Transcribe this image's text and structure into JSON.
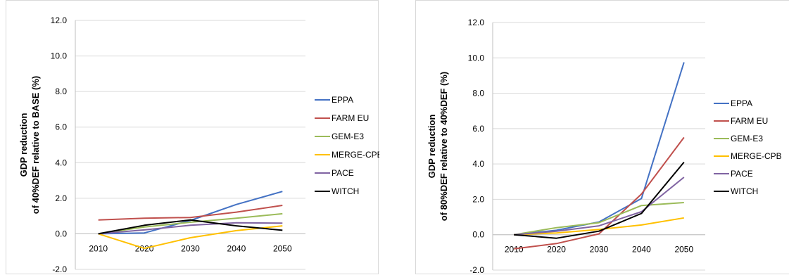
{
  "chart_data": [
    {
      "type": "line",
      "ylabel": [
        "GDP reduction",
        "of 40%DEF relative to BASE (%)"
      ],
      "x": [
        "2010",
        "2020",
        "2030",
        "2040",
        "2050"
      ],
      "ylim": [
        -2.0,
        12.0
      ],
      "yticks": [
        "-2.0",
        "0.0",
        "2.0",
        "4.0",
        "6.0",
        "8.0",
        "10.0",
        "12.0"
      ],
      "grid": true,
      "legend": "right",
      "series": [
        {
          "name": "EPPA",
          "color": "#4472c4",
          "values": [
            0.0,
            0.05,
            0.75,
            1.65,
            2.38
          ]
        },
        {
          "name": "FARM EU",
          "color": "#c0504d",
          "values": [
            0.78,
            0.88,
            0.92,
            1.22,
            1.6
          ]
        },
        {
          "name": "GEM-E3",
          "color": "#9bbb59",
          "values": [
            0.0,
            0.38,
            0.65,
            0.88,
            1.13
          ]
        },
        {
          "name": "MERGE-CPB",
          "color": "#ffc000",
          "values": [
            0.0,
            -0.82,
            -0.22,
            0.18,
            0.45
          ]
        },
        {
          "name": "PACE",
          "color": "#8064a2",
          "values": [
            0.0,
            0.22,
            0.48,
            0.62,
            0.6
          ]
        },
        {
          "name": "WITCH",
          "color": "#000000",
          "values": [
            0.0,
            0.48,
            0.78,
            0.45,
            0.2
          ]
        }
      ]
    },
    {
      "type": "line",
      "ylabel": [
        "GDP reduction",
        "of 80%DEF relative to 40%DEF (%)"
      ],
      "x": [
        "2010",
        "2020",
        "2030",
        "2040",
        "2050"
      ],
      "ylim": [
        -2.0,
        12.0
      ],
      "yticks": [
        "-2.0",
        "0.0",
        "2.0",
        "4.0",
        "6.0",
        "8.0",
        "10.0",
        "12.0"
      ],
      "grid": true,
      "legend": "right",
      "series": [
        {
          "name": "EPPA",
          "color": "#4472c4",
          "values": [
            0.0,
            0.25,
            0.72,
            2.05,
            9.75
          ]
        },
        {
          "name": "FARM EU",
          "color": "#c0504d",
          "values": [
            -0.8,
            -0.5,
            0.05,
            2.3,
            5.5
          ]
        },
        {
          "name": "GEM-E3",
          "color": "#9bbb59",
          "values": [
            0.0,
            0.4,
            0.68,
            1.65,
            1.82
          ]
        },
        {
          "name": "MERGE-CPB",
          "color": "#ffc000",
          "values": [
            0.0,
            0.1,
            0.3,
            0.55,
            0.95
          ]
        },
        {
          "name": "PACE",
          "color": "#8064a2",
          "values": [
            0.0,
            0.2,
            0.5,
            1.3,
            3.25
          ]
        },
        {
          "name": "WITCH",
          "color": "#000000",
          "values": [
            0.0,
            -0.2,
            0.2,
            1.2,
            4.1
          ]
        }
      ]
    }
  ]
}
